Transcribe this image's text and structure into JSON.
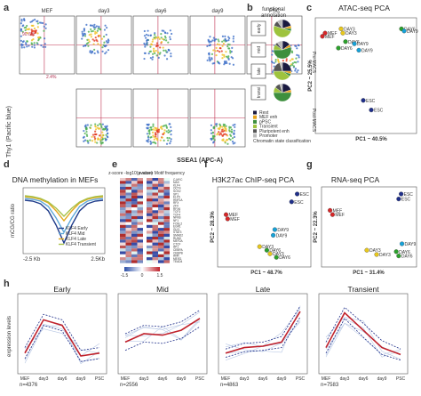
{
  "panels": {
    "a": {
      "label": "a",
      "stage_labels": [
        "MEF",
        "day3",
        "day6",
        "day9",
        "PSC"
      ],
      "y_axis_label": "Thy1 (Pacific blue)",
      "x_axis_label": "SSEA1 (APC-A)",
      "row_labels": [
        "Pre-MACS",
        "Post-MACS"
      ],
      "gate_values": [
        "90.6%",
        "2.4%"
      ]
    },
    "b": {
      "label": "b",
      "title_line1": "functional",
      "title_line2": "annotation",
      "row_labels": [
        "early",
        "mid",
        "late",
        "transi"
      ],
      "legend": [
        {
          "name": "Rest",
          "color": "#1a1a40"
        },
        {
          "name": "MEF enh",
          "color": "#e6a117"
        },
        {
          "name": "pPSC",
          "color": "#3d8f3d"
        },
        {
          "name": "Transient",
          "color": "#9ec33d"
        },
        {
          "name": "Pluripotent enh",
          "color": "#555555"
        },
        {
          "name": "Promoter",
          "color": "#bbbbbb"
        }
      ],
      "footer": "Chromatin state classification"
    },
    "c": {
      "label": "c",
      "title": "ATAC-seq PCA",
      "xlabel": "PC1 ~ 40.5%",
      "ylabel": "PC2 ~ 25.5%"
    },
    "d": {
      "label": "d",
      "title": "DNA methylation in MEFs",
      "ylabel": "mCG/CG ratio",
      "x_left": "-2.5 Kb",
      "x_right": "2.5Kb",
      "legend": [
        {
          "name": "KLF4 Early",
          "color": "#1f3b8a"
        },
        {
          "name": "KLF4 Mid",
          "color": "#5fa8d8"
        },
        {
          "name": "KLF4 Late",
          "color": "#e2a81c"
        },
        {
          "name": "KLF4 Transient",
          "color": "#a8c24a"
        }
      ]
    },
    "e": {
      "label": "e",
      "col1_header": "z-score -log10(pvalue)",
      "col2_header": "z-score Motif frequency",
      "genes": [
        "C-MYC",
        "MAX",
        "KLF4",
        "OCT4",
        "SOX2",
        "SP1",
        "ELF5",
        "HNF1A",
        "RFX",
        "ZFX",
        "RFX6",
        "TCF3",
        "TCF4",
        "NFKB",
        "NF1",
        "FOSL2",
        "EGR1",
        "GLI3",
        "STAT3",
        "SMAD2",
        "RUNX",
        "MEF2A",
        "CTCF",
        "AP1",
        "CEBPA",
        "CEBPB",
        "AHR",
        "MEIS1",
        "TEAD4"
      ],
      "scale_min": "-1.5",
      "scale_mid": "0",
      "scale_max": "1.5"
    },
    "f": {
      "label": "f",
      "title": "H3K27ac ChIP-seq PCA",
      "xlabel": "PC1 ~ 48.7%",
      "ylabel": "PC2 ~ 28.3%"
    },
    "g": {
      "label": "g",
      "title": "RNA-seq PCA",
      "xlabel": "PC1 ~ 31.4%",
      "ylabel": "PC2 ~ 22.3%"
    },
    "h": {
      "label": "h",
      "ylabel": "expression levels"
    }
  },
  "chart_data": [
    {
      "type": "scatter",
      "panel": "c",
      "title": "ATAC-seq PCA",
      "xlabel": "PC1 ~ 40.5%",
      "ylabel": "PC2 ~ 25.5%",
      "xlim": [
        0,
        10
      ],
      "ylim": [
        0,
        10
      ],
      "points": [
        {
          "label": "MEF",
          "x": 0.6,
          "y": 8.9,
          "color": "#d62728"
        },
        {
          "label": "MEF",
          "x": 0.3,
          "y": 8.6,
          "color": "#d62728"
        },
        {
          "label": "DAY3",
          "x": 2.4,
          "y": 9.3,
          "color": "#e8c81d"
        },
        {
          "label": "DAY3",
          "x": 2.6,
          "y": 8.9,
          "color": "#e8c81d"
        },
        {
          "label": "DAY6",
          "x": 2.9,
          "y": 8.1,
          "color": "#2ca02c"
        },
        {
          "label": "DAY6",
          "x": 2.1,
          "y": 7.5,
          "color": "#2ca02c"
        },
        {
          "label": "DAY9",
          "x": 3.9,
          "y": 7.9,
          "color": "#17a2d8"
        },
        {
          "label": "DAY9",
          "x": 4.4,
          "y": 7.3,
          "color": "#17a2d8"
        },
        {
          "label": "DAY6",
          "x": 9.2,
          "y": 9.3,
          "color": "#2ca02c"
        },
        {
          "label": "DAY9",
          "x": 9.5,
          "y": 9.1,
          "color": "#17a2d8"
        },
        {
          "label": "ESC",
          "x": 4.9,
          "y": 2.6,
          "color": "#1f2f8a"
        },
        {
          "label": "ESC",
          "x": 5.8,
          "y": 1.7,
          "color": "#1f2f8a"
        }
      ]
    },
    {
      "type": "line",
      "panel": "d",
      "title": "DNA methylation in MEFs",
      "ylabel": "mCG/CG ratio",
      "x": [
        -2.5,
        -2,
        -1.5,
        -1,
        -0.5,
        0,
        0.5,
        1,
        1.5,
        2,
        2.5
      ],
      "series": [
        {
          "name": "KLF4 Early",
          "values": [
            0.78,
            0.77,
            0.74,
            0.66,
            0.5,
            0.3,
            0.5,
            0.66,
            0.74,
            0.77,
            0.78
          ]
        },
        {
          "name": "KLF4 Mid",
          "values": [
            0.8,
            0.79,
            0.77,
            0.71,
            0.58,
            0.42,
            0.58,
            0.71,
            0.77,
            0.79,
            0.8
          ]
        },
        {
          "name": "KLF4 Late",
          "values": [
            0.82,
            0.81,
            0.79,
            0.75,
            0.66,
            0.55,
            0.66,
            0.75,
            0.79,
            0.81,
            0.82
          ]
        },
        {
          "name": "KLF4 Transient",
          "values": [
            0.83,
            0.82,
            0.8,
            0.76,
            0.69,
            0.6,
            0.69,
            0.76,
            0.8,
            0.82,
            0.83
          ]
        }
      ],
      "ylim": [
        0.2,
        0.9
      ]
    },
    {
      "type": "scatter",
      "panel": "f",
      "title": "H3K27ac ChIP-seq PCA",
      "xlabel": "PC1 ~ 48.7%",
      "ylabel": "PC2 ~ 28.3%",
      "xlim": [
        0,
        10
      ],
      "ylim": [
        0,
        10
      ],
      "points": [
        {
          "label": "ESC",
          "x": 9.4,
          "y": 9.5,
          "color": "#1f2f8a"
        },
        {
          "label": "ESC",
          "x": 8.7,
          "y": 8.4,
          "color": "#1f2f8a"
        },
        {
          "label": "MEF",
          "x": 0.5,
          "y": 6.6,
          "color": "#d62728"
        },
        {
          "label": "MEF",
          "x": 0.7,
          "y": 6.0,
          "color": "#d62728"
        },
        {
          "label": "DAY9",
          "x": 6.6,
          "y": 4.5,
          "color": "#17a2d8"
        },
        {
          "label": "DAY9",
          "x": 6.4,
          "y": 3.7,
          "color": "#17a2d8"
        },
        {
          "label": "DAY3",
          "x": 4.7,
          "y": 2.1,
          "color": "#e8c81d"
        },
        {
          "label": "DAY6",
          "x": 5.6,
          "y": 1.6,
          "color": "#2ca02c"
        },
        {
          "label": "DAY3",
          "x": 6.0,
          "y": 1.1,
          "color": "#e8c81d"
        },
        {
          "label": "DAY6",
          "x": 6.8,
          "y": 0.6,
          "color": "#2ca02c"
        }
      ]
    },
    {
      "type": "scatter",
      "panel": "g",
      "title": "RNA-seq PCA",
      "xlabel": "PC1 ~ 31.4%",
      "ylabel": "PC2 ~ 22.3%",
      "xlim": [
        0,
        10
      ],
      "ylim": [
        0,
        10
      ],
      "points": [
        {
          "label": "ESC",
          "x": 9.2,
          "y": 9.5,
          "color": "#1f2f8a"
        },
        {
          "label": "ESC",
          "x": 8.9,
          "y": 8.8,
          "color": "#1f2f8a"
        },
        {
          "label": "MEF",
          "x": 0.5,
          "y": 7.2,
          "color": "#d62728"
        },
        {
          "label": "MEF",
          "x": 0.8,
          "y": 6.6,
          "color": "#d62728"
        },
        {
          "label": "DAY9",
          "x": 9.3,
          "y": 2.5,
          "color": "#17a2d8"
        },
        {
          "label": "DAY3",
          "x": 5.0,
          "y": 1.6,
          "color": "#e8c81d"
        },
        {
          "label": "DAY3",
          "x": 6.2,
          "y": 1.0,
          "color": "#e8c81d"
        },
        {
          "label": "DAY6",
          "x": 8.6,
          "y": 1.4,
          "color": "#2ca02c"
        },
        {
          "label": "DAY6",
          "x": 8.9,
          "y": 0.8,
          "color": "#2ca02c"
        }
      ]
    },
    {
      "type": "line",
      "panel": "h",
      "categories": [
        "MEF",
        "day3",
        "day6",
        "day9",
        "PSC"
      ],
      "ylabel": "expression levels",
      "groups": [
        {
          "title": "Early",
          "n": "n=4376",
          "mean": [
            0.22,
            0.7,
            0.62,
            0.18,
            0.22
          ],
          "upper": [
            0.3,
            0.78,
            0.7,
            0.26,
            0.3
          ],
          "lower": [
            0.14,
            0.62,
            0.54,
            0.1,
            0.14
          ]
        },
        {
          "title": "Mid",
          "n": "n=2556",
          "mean": [
            0.38,
            0.5,
            0.48,
            0.55,
            0.72
          ],
          "upper": [
            0.5,
            0.62,
            0.6,
            0.67,
            0.84
          ],
          "lower": [
            0.26,
            0.38,
            0.36,
            0.43,
            0.6
          ]
        },
        {
          "title": "Late",
          "n": "n=4863",
          "mean": [
            0.22,
            0.3,
            0.32,
            0.38,
            0.82
          ],
          "upper": [
            0.28,
            0.36,
            0.38,
            0.46,
            0.9
          ],
          "lower": [
            0.16,
            0.24,
            0.26,
            0.3,
            0.74
          ]
        },
        {
          "title": "Transient",
          "n": "n=7583",
          "mean": [
            0.3,
            0.8,
            0.55,
            0.3,
            0.2
          ],
          "upper": [
            0.38,
            0.88,
            0.65,
            0.4,
            0.28
          ],
          "lower": [
            0.22,
            0.72,
            0.45,
            0.2,
            0.12
          ]
        }
      ],
      "ylim": [
        0,
        1
      ]
    }
  ]
}
